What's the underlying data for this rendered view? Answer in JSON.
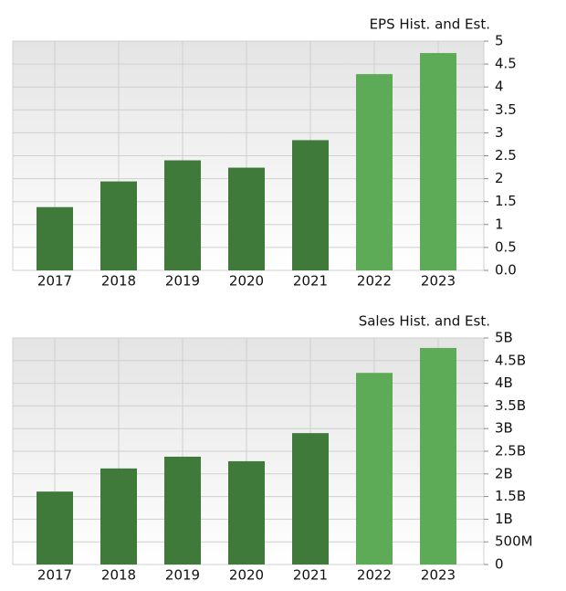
{
  "chart_data": [
    {
      "type": "bar",
      "title": "EPS Hist. and Est.",
      "categories": [
        "2017",
        "2018",
        "2019",
        "2020",
        "2021",
        "2022",
        "2023"
      ],
      "values": [
        1.38,
        1.94,
        2.4,
        2.24,
        2.84,
        4.28,
        4.74
      ],
      "colors": [
        "#3f7a3b",
        "#3f7a3b",
        "#3f7a3b",
        "#3f7a3b",
        "#3f7a3b",
        "#5dab56",
        "#5dab56"
      ],
      "ylim": [
        0,
        5
      ],
      "yticks": [
        {
          "value": 0,
          "label": "0.0"
        },
        0.5,
        1,
        1.5,
        2,
        2.5,
        3,
        3.5,
        4,
        4.5,
        5
      ],
      "grid": true
    },
    {
      "type": "bar",
      "title": "Sales Hist. and Est.",
      "categories": [
        "2017",
        "2018",
        "2019",
        "2020",
        "2021",
        "2022",
        "2023"
      ],
      "values": [
        1610000000,
        2120000000,
        2380000000,
        2280000000,
        2900000000,
        4230000000,
        4780000000
      ],
      "colors": [
        "#3f7a3b",
        "#3f7a3b",
        "#3f7a3b",
        "#3f7a3b",
        "#3f7a3b",
        "#5dab56",
        "#5dab56"
      ],
      "ylim": [
        0,
        5000000000
      ],
      "yticks": [
        0,
        {
          "value": 500000000,
          "label": "500M"
        },
        {
          "value": 1000000000,
          "label": "1B"
        },
        {
          "value": 1500000000,
          "label": "1.5B"
        },
        {
          "value": 2000000000,
          "label": "2B"
        },
        {
          "value": 2500000000,
          "label": "2.5B"
        },
        {
          "value": 3000000000,
          "label": "3B"
        },
        {
          "value": 3500000000,
          "label": "3.5B"
        },
        {
          "value": 4000000000,
          "label": "4B"
        },
        {
          "value": 4500000000,
          "label": "4.5B"
        },
        {
          "value": 5000000000,
          "label": "5B"
        }
      ],
      "grid": true
    }
  ]
}
